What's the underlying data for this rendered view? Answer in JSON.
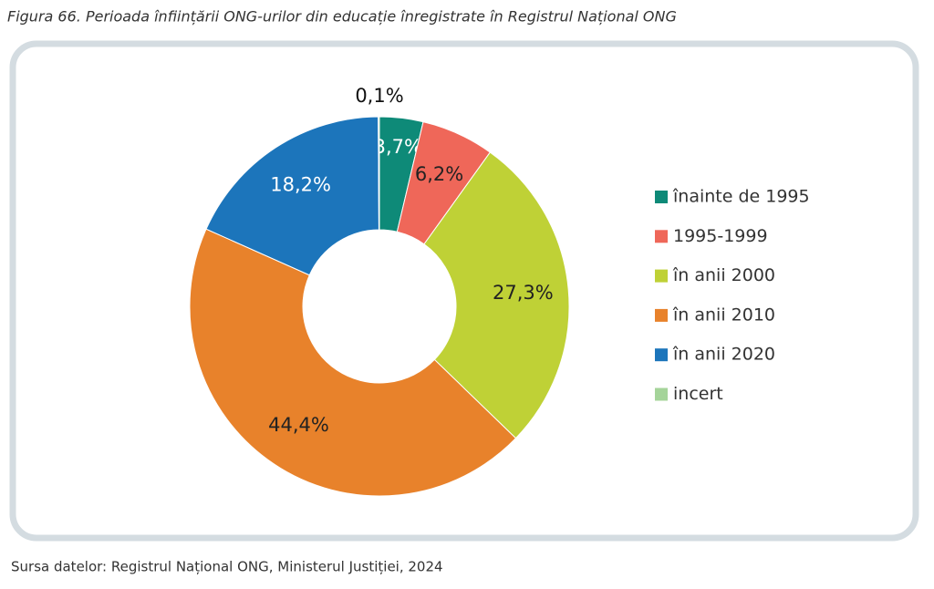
{
  "chart_data": {
    "type": "donut",
    "title": "Figura 66. Perioada înființării ONG-urilor din educație înregistrate în Registrul Național ONG",
    "source": "Sursa datelor: Registrul Național ONG, Ministerul Justiției, 2024",
    "categories": [
      "înainte de 1995",
      "1995-1999",
      "în anii 2000",
      "în anii 2010",
      "în anii 2020",
      "incert"
    ],
    "values": [
      3.7,
      6.2,
      27.3,
      44.4,
      18.2,
      0.1
    ],
    "value_labels": [
      "3,7%",
      "6,2%",
      "27,3%",
      "44,4%",
      "18,2%",
      "0,1%"
    ],
    "colors": [
      "#0e8a78",
      "#ef6759",
      "#bfd136",
      "#e8822b",
      "#1c75bb",
      "#a5d49a"
    ],
    "legend": "right"
  }
}
